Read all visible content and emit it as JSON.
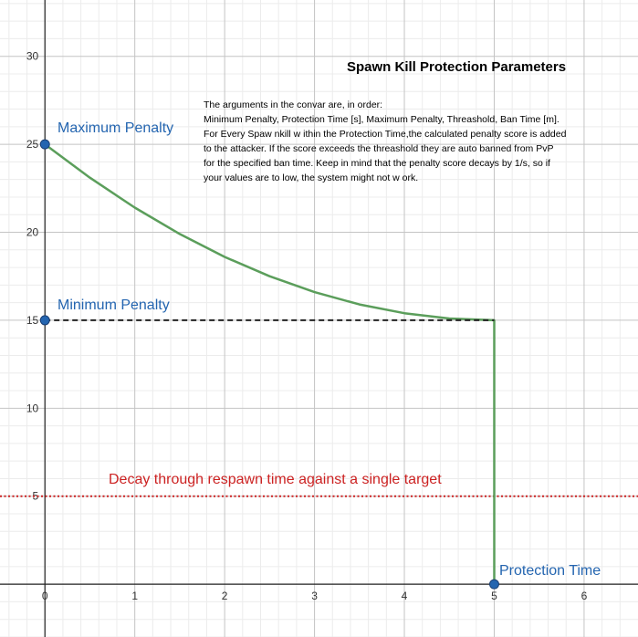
{
  "chart_data": {
    "type": "line",
    "title": "Spawn Kill Protection Parameters",
    "description": [
      "The arguments in the convar are, in order:",
      "Minimum Penalty, Protection Time [s], Maximum Penalty, Threashold, Ban Time [m].",
      "For Every Spaw nkill w ithin the Protection Time,the calculated penalty score is added",
      "to the attacker. If the score exceeds the threashold they are auto banned from PvP",
      "for the specified ban time. Keep in mind that the penalty score decays by 1/s, so if",
      "your values are to low, the system might not w ork."
    ],
    "xlim": [
      -0.5,
      6.6
    ],
    "ylim": [
      -3,
      33.2
    ],
    "x_ticks": [
      0,
      1,
      2,
      3,
      4,
      5,
      6
    ],
    "y_ticks": [
      5,
      10,
      15,
      20,
      25,
      30
    ],
    "grid": true,
    "series": [
      {
        "style": "solid",
        "color": "#5b9e5b",
        "x": [
          0,
          0.5,
          1,
          1.5,
          2,
          2.5,
          3,
          3.5,
          4,
          4.5,
          5,
          5,
          5
        ],
        "y": [
          25,
          23.1,
          21.4,
          19.9,
          18.6,
          17.5,
          16.6,
          15.9,
          15.4,
          15.1,
          15,
          5,
          0
        ]
      },
      {
        "style": "dashed",
        "color": "#222222",
        "x": [
          0,
          5
        ],
        "y": [
          15,
          15
        ]
      }
    ],
    "decay_line": {
      "y": 5,
      "style": "dotted",
      "color": "#cc2222",
      "label": "Decay through respawn time against a single target"
    },
    "points": [
      {
        "x": 0,
        "y": 25,
        "label": "Maximum Penalty",
        "color": "#2465b0"
      },
      {
        "x": 0,
        "y": 15,
        "label": "Minimum Penalty",
        "color": "#2465b0"
      },
      {
        "x": 5,
        "y": 0,
        "label": "Protection Time",
        "color": "#2465b0"
      }
    ]
  }
}
